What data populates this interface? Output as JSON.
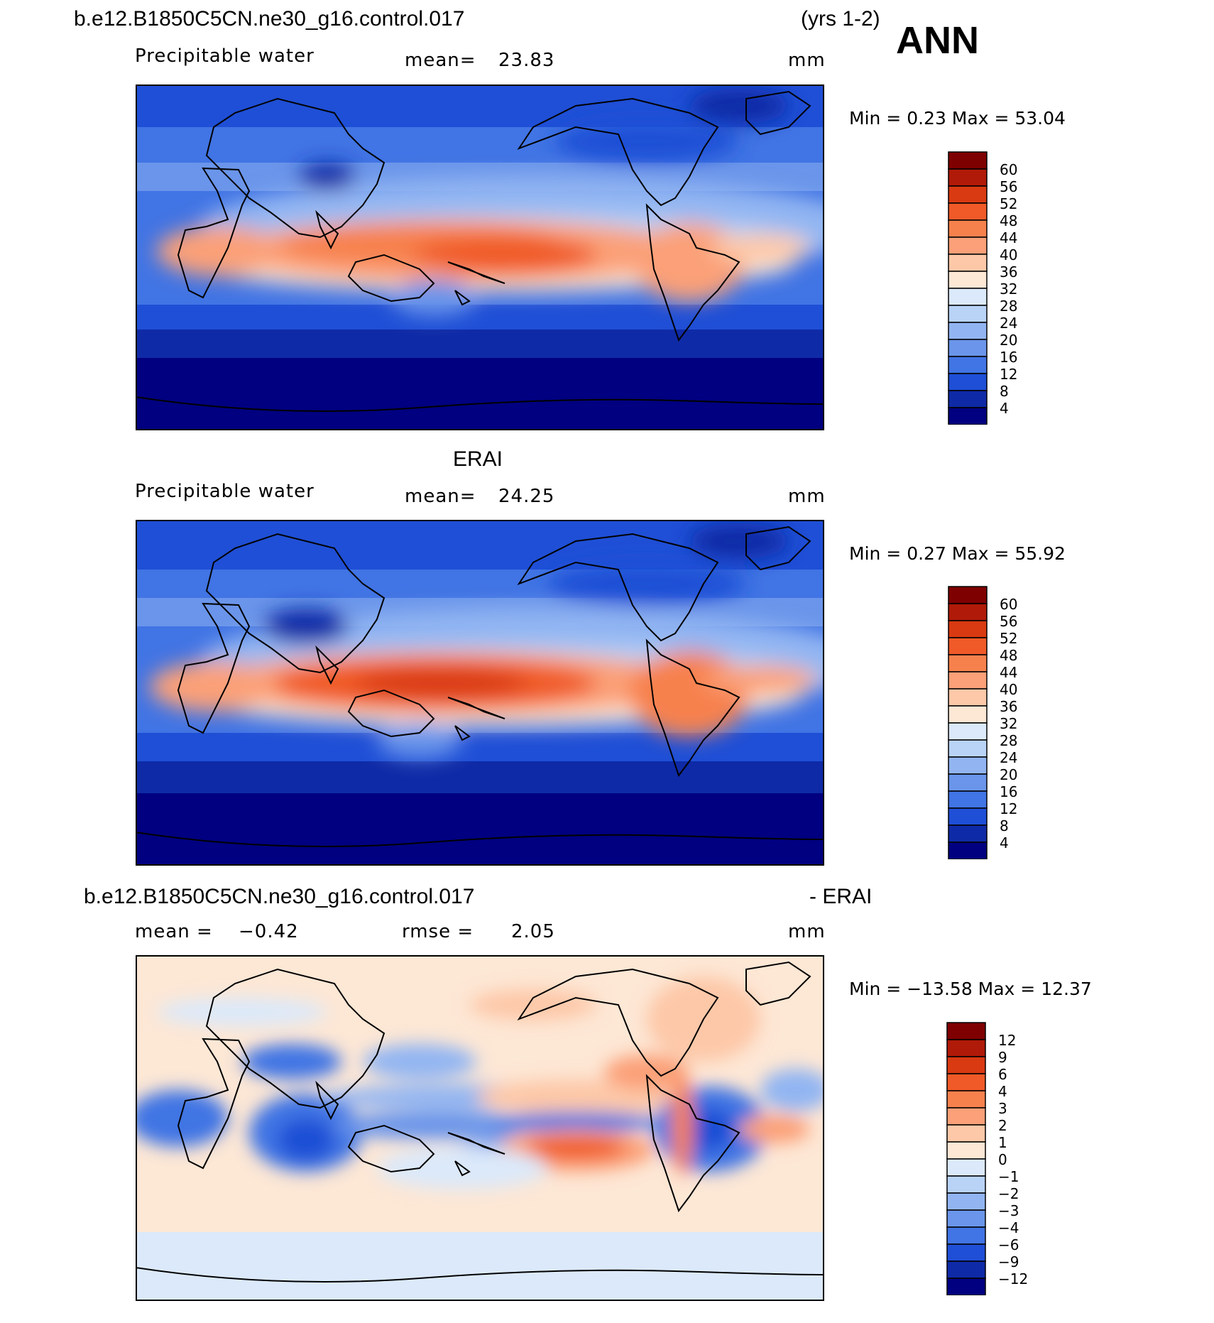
{
  "header": {
    "case_name": "b.e12.B1850C5CN.ne30_g16.control.017",
    "years": "(yrs 1-2)",
    "season": "ANN"
  },
  "panels": [
    {
      "title": "",
      "variable": "Precipitable water",
      "stat_label": "mean=",
      "stat_value": "23.83",
      "units": "mm",
      "min_max": "Min =    0.23 Max =   53.04",
      "colorbar_labels": [
        "60",
        "56",
        "52",
        "48",
        "44",
        "40",
        "36",
        "32",
        "28",
        "24",
        "20",
        "16",
        "12",
        "8",
        "4"
      ]
    },
    {
      "title": "ERAI",
      "variable": "Precipitable water",
      "stat_label": "mean=",
      "stat_value": "24.25",
      "units": "mm",
      "min_max": "Min =    0.27 Max =   55.92",
      "colorbar_labels": [
        "60",
        "56",
        "52",
        "48",
        "44",
        "40",
        "36",
        "32",
        "28",
        "24",
        "20",
        "16",
        "12",
        "8",
        "4"
      ]
    },
    {
      "title_case": "b.e12.B1850C5CN.ne30_g16.control.017",
      "title_suffix": "- ERAI",
      "mean_label": "mean =",
      "mean_value": "−0.42",
      "rmse_label": "rmse =",
      "rmse_value": "2.05",
      "units": "mm",
      "min_max": "Min = −13.58 Max =   12.37",
      "colorbar_labels": [
        "12",
        "9",
        "6",
        "4",
        "3",
        "2",
        "1",
        "0",
        "−1",
        "−2",
        "−3",
        "−4",
        "−6",
        "−9",
        "−12"
      ]
    }
  ],
  "colors": {
    "abs_scale": [
      "#7f0000",
      "#b01a08",
      "#d93a12",
      "#f05a28",
      "#f7814d",
      "#fba078",
      "#fdc8a8",
      "#fde7d5",
      "#dbe9fa",
      "#b9d3f7",
      "#92b5f2",
      "#6a95ea",
      "#4174e4",
      "#1f4fd6",
      "#0f2aa6",
      "#000080"
    ],
    "diff_scale": [
      "#7f0000",
      "#b01a08",
      "#d93a12",
      "#f05a28",
      "#f7814d",
      "#fba078",
      "#fdc8a8",
      "#fde7d5",
      "#dbe9fa",
      "#b9d3f7",
      "#92b5f2",
      "#6a95ea",
      "#4174e4",
      "#1f4fd6",
      "#0f2aa6",
      "#000080"
    ]
  }
}
